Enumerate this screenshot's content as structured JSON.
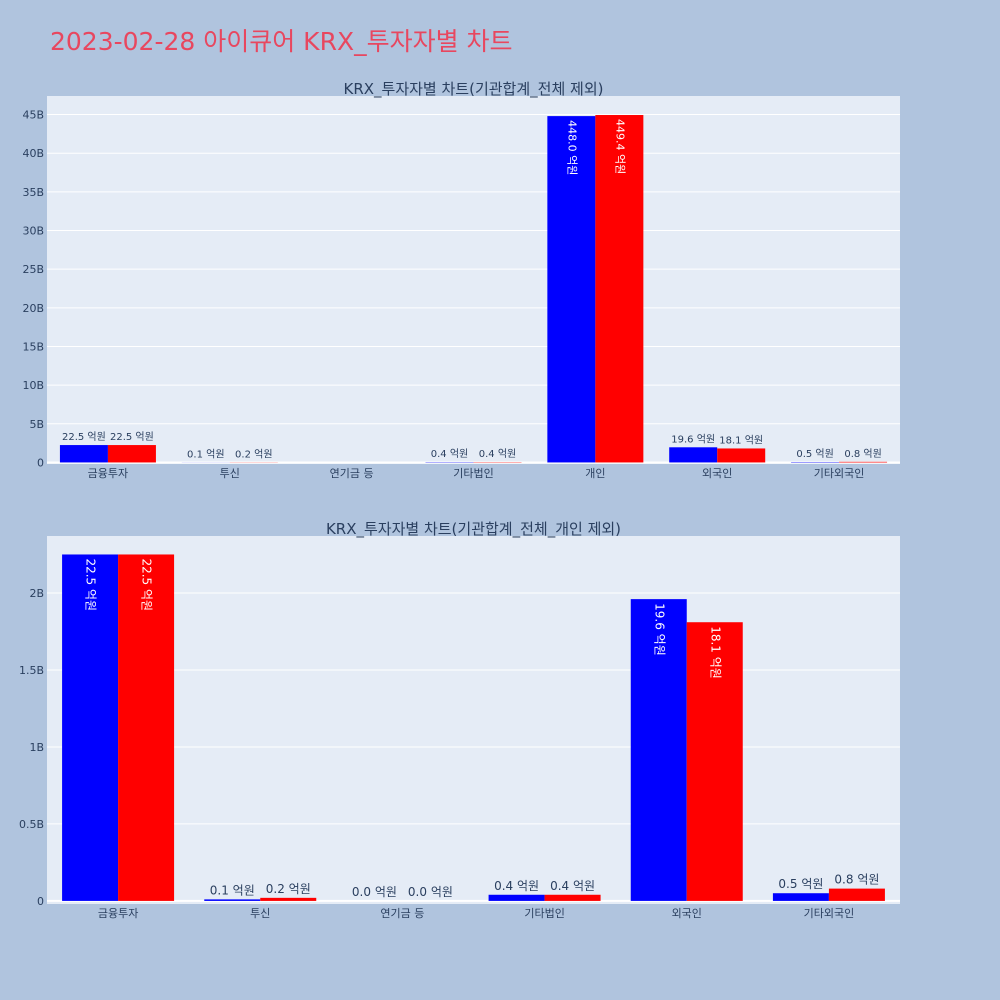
{
  "page_title": "2023-02-28 아이큐어 KRX_투자자별 차트",
  "colors": {
    "background": "#b0c4de",
    "plot_background": "#e5ecf6",
    "title": "#e8475f",
    "series_1": "#0000ff",
    "series_2": "#ff0000",
    "text": "#2a3f5f"
  },
  "chart_data": [
    {
      "type": "bar",
      "title": "KRX_투자자별 차트(기관합계_전체 제외)",
      "categories": [
        "금융투자",
        "투신",
        "연기금 등",
        "기타법인",
        "개인",
        "외국인",
        "기타외국인"
      ],
      "series": [
        {
          "color": "#0000ff",
          "values": [
            2250000000,
            10000000,
            0,
            40000000,
            44800000000,
            1960000000,
            50000000
          ],
          "labels": [
            "22.5 억원",
            "0.1 억원",
            "",
            "0.4 억원",
            "448.0 억원",
            "19.6 억원",
            "0.5 억원"
          ]
        },
        {
          "color": "#ff0000",
          "values": [
            2250000000,
            20000000,
            0,
            40000000,
            44940000000,
            1810000000,
            80000000
          ],
          "labels": [
            "22.5 억원",
            "0.2 억원",
            "",
            "0.4 억원",
            "449.4 억원",
            "18.1 억원",
            "0.8 억원"
          ]
        }
      ],
      "yticks": [
        0,
        5000000000,
        10000000000,
        15000000000,
        20000000000,
        25000000000,
        30000000000,
        35000000000,
        40000000000,
        45000000000
      ],
      "ytick_labels": [
        "0",
        "5B",
        "10B",
        "15B",
        "20B",
        "25B",
        "30B",
        "35B",
        "40B",
        "45B"
      ],
      "ylim": [
        -200000000,
        47400000000
      ],
      "grid": true,
      "legend": "none"
    },
    {
      "type": "bar",
      "title": "KRX_투자자별 차트(기관합계_전체_개인 제외)",
      "categories": [
        "금융투자",
        "투신",
        "연기금 등",
        "기타법인",
        "외국인",
        "기타외국인"
      ],
      "series": [
        {
          "color": "#0000ff",
          "values": [
            2250000000,
            10000000,
            0,
            40000000,
            1960000000,
            50000000
          ],
          "labels": [
            "22.5 억원",
            "0.1 억원",
            "0.0 억원",
            "0.4 억원",
            "19.6 억원",
            "0.5 억원"
          ]
        },
        {
          "color": "#ff0000",
          "values": [
            2250000000,
            20000000,
            0,
            40000000,
            1810000000,
            80000000
          ],
          "labels": [
            "22.5 억원",
            "0.2 억원",
            "0.0 억원",
            "0.4 억원",
            "18.1 억원",
            "0.8 억원"
          ]
        }
      ],
      "yticks": [
        0,
        500000000,
        1000000000,
        1500000000,
        2000000000
      ],
      "ytick_labels": [
        "0",
        "0.5B",
        "1B",
        "1.5B",
        "2B"
      ],
      "ylim": [
        -20000000,
        2370000000
      ],
      "grid": true,
      "legend": "none"
    }
  ]
}
